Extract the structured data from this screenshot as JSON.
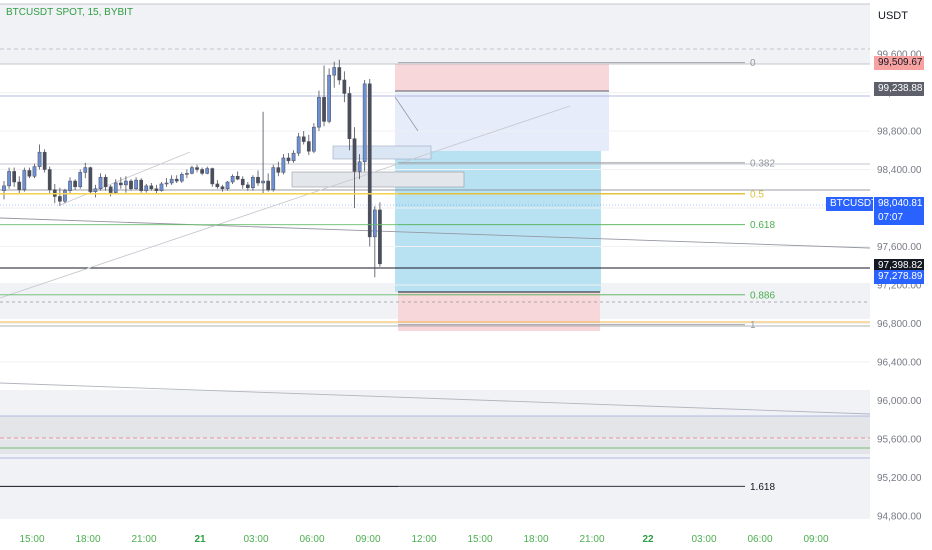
{
  "header": {
    "symbol_line": "BTCUSDT SPOT, 15, BYBIT",
    "currency": "USDT"
  },
  "chart_data": {
    "type": "candlestick",
    "symbol": "BTCUSDT SPOT",
    "interval": "15",
    "exchange": "BYBIT",
    "price_axis": {
      "ticks": [
        "99,600.00",
        "99,200.00",
        "98,800.00",
        "98,400.00",
        "98,000.00",
        "97,600.00",
        "97,200.00",
        "96,800.00",
        "96,400.00",
        "96,000.00",
        "95,600.00",
        "95,200.00",
        "94,800.00"
      ],
      "range": [
        94750,
        100050
      ]
    },
    "time_axis": {
      "ticks": [
        {
          "label": "15:00",
          "bold": false
        },
        {
          "label": "18:00",
          "bold": false
        },
        {
          "label": "21:00",
          "bold": false
        },
        {
          "label": "21",
          "bold": true
        },
        {
          "label": "03:00",
          "bold": false
        },
        {
          "label": "06:00",
          "bold": false
        },
        {
          "label": "09:00",
          "bold": false
        },
        {
          "label": "12:00",
          "bold": false
        },
        {
          "label": "15:00",
          "bold": false
        },
        {
          "label": "18:00",
          "bold": false
        },
        {
          "label": "21:00",
          "bold": false
        },
        {
          "label": "22",
          "bold": true
        },
        {
          "label": "03:00",
          "bold": false
        },
        {
          "label": "06:00",
          "bold": false
        },
        {
          "label": "09:00",
          "bold": false
        }
      ]
    },
    "price_labels": [
      {
        "text": "99,509.67",
        "price": 99509.67,
        "bg": "#f7a1a1",
        "fg": "#131722"
      },
      {
        "text": "99,238.88",
        "price": 99238.88,
        "bg": "#5d606b",
        "fg": "#ffffff"
      },
      {
        "text": "BTCUSDT",
        "price": 98040.81,
        "bg": "#2962ff",
        "fg": "#ffffff"
      },
      {
        "text": "98,040.81",
        "price": 98040.81,
        "bg": "#2962ff",
        "fg": "#ffffff"
      },
      {
        "text": "07:07",
        "price": 97950,
        "bg": "#2962ff",
        "fg": "#ffffff"
      },
      {
        "text": "97,398.82",
        "price": 97398.82,
        "bg": "#131722",
        "fg": "#ffffff"
      },
      {
        "text": "97,278.89",
        "price": 97278.89,
        "bg": "#2962ff",
        "fg": "#ffffff"
      }
    ],
    "fib_levels": [
      {
        "label": "0",
        "price": 99509.67,
        "color": "#9598a1"
      },
      {
        "label": "0.382",
        "price": 98470,
        "color": "#9598a1"
      },
      {
        "label": "0.5",
        "price": 98148,
        "color": "#e0c33a"
      },
      {
        "label": "0.618",
        "price": 97827,
        "color": "#4caf50"
      },
      {
        "label": "0.886",
        "price": 97098,
        "color": "#4caf50"
      },
      {
        "label": "1",
        "price": 96788,
        "color": "#9598a1"
      },
      {
        "label": "1.618",
        "price": 95108,
        "color": "#131722"
      }
    ],
    "candles": [
      {
        "o": 98180,
        "h": 98280,
        "l": 98090,
        "c": 98230
      },
      {
        "o": 98230,
        "h": 98420,
        "l": 98200,
        "c": 98380
      },
      {
        "o": 98380,
        "h": 98420,
        "l": 98220,
        "c": 98270
      },
      {
        "o": 98270,
        "h": 98330,
        "l": 98150,
        "c": 98190
      },
      {
        "o": 98190,
        "h": 98420,
        "l": 98170,
        "c": 98390
      },
      {
        "o": 98390,
        "h": 98420,
        "l": 98310,
        "c": 98330
      },
      {
        "o": 98330,
        "h": 98460,
        "l": 98310,
        "c": 98430
      },
      {
        "o": 98430,
        "h": 98660,
        "l": 98400,
        "c": 98580
      },
      {
        "o": 98580,
        "h": 98610,
        "l": 98370,
        "c": 98400
      },
      {
        "o": 98400,
        "h": 98430,
        "l": 98140,
        "c": 98190
      },
      {
        "o": 98190,
        "h": 98250,
        "l": 98050,
        "c": 98120
      },
      {
        "o": 98120,
        "h": 98210,
        "l": 98020,
        "c": 98070
      },
      {
        "o": 98070,
        "h": 98200,
        "l": 98050,
        "c": 98180
      },
      {
        "o": 98180,
        "h": 98320,
        "l": 98150,
        "c": 98280
      },
      {
        "o": 98280,
        "h": 98300,
        "l": 98190,
        "c": 98220
      },
      {
        "o": 98220,
        "h": 98400,
        "l": 98200,
        "c": 98370
      },
      {
        "o": 98370,
        "h": 98470,
        "l": 98310,
        "c": 98420
      },
      {
        "o": 98420,
        "h": 98430,
        "l": 98140,
        "c": 98170
      },
      {
        "o": 98170,
        "h": 98240,
        "l": 98110,
        "c": 98200
      },
      {
        "o": 98200,
        "h": 98360,
        "l": 98180,
        "c": 98320
      },
      {
        "o": 98320,
        "h": 98350,
        "l": 98180,
        "c": 98220
      },
      {
        "o": 98220,
        "h": 98240,
        "l": 98120,
        "c": 98160
      },
      {
        "o": 98160,
        "h": 98300,
        "l": 98140,
        "c": 98260
      },
      {
        "o": 98260,
        "h": 98320,
        "l": 98200,
        "c": 98240
      },
      {
        "o": 98240,
        "h": 98330,
        "l": 98160,
        "c": 98280
      },
      {
        "o": 98280,
        "h": 98300,
        "l": 98180,
        "c": 98200
      },
      {
        "o": 98200,
        "h": 98320,
        "l": 98190,
        "c": 98290
      },
      {
        "o": 98290,
        "h": 98310,
        "l": 98160,
        "c": 98180
      },
      {
        "o": 98180,
        "h": 98250,
        "l": 98160,
        "c": 98230
      },
      {
        "o": 98230,
        "h": 98260,
        "l": 98180,
        "c": 98200
      },
      {
        "o": 98200,
        "h": 98240,
        "l": 98150,
        "c": 98180
      },
      {
        "o": 98180,
        "h": 98270,
        "l": 98170,
        "c": 98250
      },
      {
        "o": 98250,
        "h": 98310,
        "l": 98220,
        "c": 98260
      },
      {
        "o": 98260,
        "h": 98340,
        "l": 98240,
        "c": 98300
      },
      {
        "o": 98300,
        "h": 98340,
        "l": 98260,
        "c": 98280
      },
      {
        "o": 98280,
        "h": 98370,
        "l": 98260,
        "c": 98350
      },
      {
        "o": 98350,
        "h": 98400,
        "l": 98310,
        "c": 98360
      },
      {
        "o": 98360,
        "h": 98440,
        "l": 98350,
        "c": 98420
      },
      {
        "o": 98420,
        "h": 98450,
        "l": 98370,
        "c": 98400
      },
      {
        "o": 98400,
        "h": 98420,
        "l": 98340,
        "c": 98360
      },
      {
        "o": 98360,
        "h": 98430,
        "l": 98350,
        "c": 98410
      },
      {
        "o": 98410,
        "h": 98420,
        "l": 98220,
        "c": 98250
      },
      {
        "o": 98250,
        "h": 98290,
        "l": 98200,
        "c": 98220
      },
      {
        "o": 98220,
        "h": 98240,
        "l": 98170,
        "c": 98200
      },
      {
        "o": 98200,
        "h": 98280,
        "l": 98180,
        "c": 98270
      },
      {
        "o": 98270,
        "h": 98350,
        "l": 98250,
        "c": 98330
      },
      {
        "o": 98330,
        "h": 98380,
        "l": 98290,
        "c": 98300
      },
      {
        "o": 98300,
        "h": 98330,
        "l": 98200,
        "c": 98240
      },
      {
        "o": 98240,
        "h": 98270,
        "l": 98180,
        "c": 98210
      },
      {
        "o": 98210,
        "h": 98340,
        "l": 98180,
        "c": 98320
      },
      {
        "o": 98320,
        "h": 98390,
        "l": 98230,
        "c": 98260
      },
      {
        "o": 98260,
        "h": 99000,
        "l": 98150,
        "c": 98280
      },
      {
        "o": 98280,
        "h": 98360,
        "l": 98170,
        "c": 98190
      },
      {
        "o": 98190,
        "h": 98450,
        "l": 98170,
        "c": 98420
      },
      {
        "o": 98420,
        "h": 98480,
        "l": 98330,
        "c": 98370
      },
      {
        "o": 98370,
        "h": 98560,
        "l": 98350,
        "c": 98520
      },
      {
        "o": 98520,
        "h": 98570,
        "l": 98460,
        "c": 98490
      },
      {
        "o": 98490,
        "h": 98600,
        "l": 98470,
        "c": 98570
      },
      {
        "o": 98570,
        "h": 98780,
        "l": 98540,
        "c": 98740
      },
      {
        "o": 98740,
        "h": 98800,
        "l": 98660,
        "c": 98690
      },
      {
        "o": 98690,
        "h": 98760,
        "l": 98550,
        "c": 98590
      },
      {
        "o": 98590,
        "h": 98880,
        "l": 98570,
        "c": 98840
      },
      {
        "o": 98840,
        "h": 99220,
        "l": 98800,
        "c": 99150
      },
      {
        "o": 99150,
        "h": 99480,
        "l": 98850,
        "c": 98900
      },
      {
        "o": 98900,
        "h": 99450,
        "l": 98880,
        "c": 99380
      },
      {
        "o": 99380,
        "h": 99520,
        "l": 99250,
        "c": 99460
      },
      {
        "o": 99460,
        "h": 99540,
        "l": 99280,
        "c": 99330
      },
      {
        "o": 99330,
        "h": 99420,
        "l": 99100,
        "c": 99190
      },
      {
        "o": 99190,
        "h": 99260,
        "l": 98600,
        "c": 98720
      },
      {
        "o": 98720,
        "h": 98840,
        "l": 98000,
        "c": 98380
      },
      {
        "o": 98380,
        "h": 98560,
        "l": 98300,
        "c": 98480
      },
      {
        "o": 98480,
        "h": 99330,
        "l": 98380,
        "c": 99290
      },
      {
        "o": 99290,
        "h": 99340,
        "l": 97600,
        "c": 97700
      },
      {
        "o": 97700,
        "h": 98020,
        "l": 97280,
        "c": 97980
      },
      {
        "o": 97980,
        "h": 98060,
        "l": 97390,
        "c": 97420
      }
    ]
  }
}
